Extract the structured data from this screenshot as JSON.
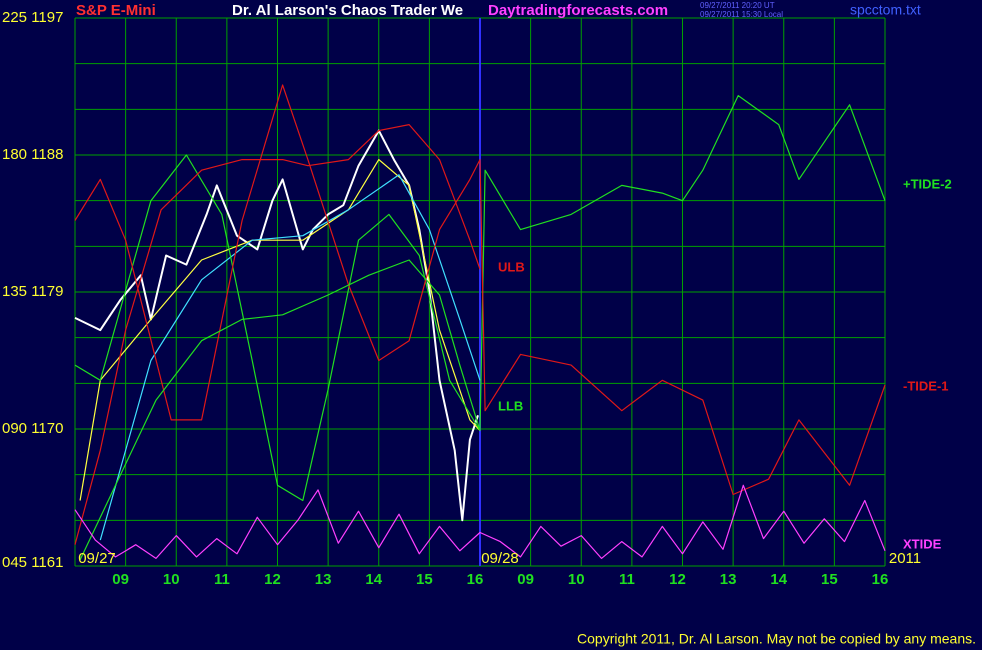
{
  "chart_data": {
    "type": "line",
    "title": "Dr. Al Larson's Chaos Trader We",
    "symbol": "S&P E-Mini",
    "site": "Daytradingforecasts.com",
    "timestamps": [
      "09/27/2011 20:20 UT",
      "09/27/2011 15:30 Local"
    ],
    "file": "spcctom.txt",
    "copyright": "Copyright 2011, Dr. Al Larson. May not be copied by any means.",
    "dates": [
      "09/27",
      "09/28",
      "2011"
    ],
    "xlim": [
      0,
      16
    ],
    "ylim": [
      1161,
      1197
    ],
    "yticks": [
      {
        "value": 1197,
        "label": "225 1197"
      },
      {
        "value": 1188,
        "label": "180 1188"
      },
      {
        "value": 1179,
        "label": "135 1179"
      },
      {
        "value": 1170,
        "label": "090 1170"
      },
      {
        "value": 1161,
        "label": "045 1161"
      }
    ],
    "minor_yticks": [
      1194,
      1191,
      1185,
      1182,
      1176,
      1173,
      1167,
      1164
    ],
    "xticks": [
      {
        "value": 1,
        "label": "09"
      },
      {
        "value": 2,
        "label": "10"
      },
      {
        "value": 3,
        "label": "11"
      },
      {
        "value": 4,
        "label": "12"
      },
      {
        "value": 5,
        "label": "13"
      },
      {
        "value": 6,
        "label": "14"
      },
      {
        "value": 7,
        "label": "15"
      },
      {
        "value": 8,
        "label": "16"
      },
      {
        "value": 9,
        "label": "09"
      },
      {
        "value": 10,
        "label": "10"
      },
      {
        "value": 11,
        "label": "11"
      },
      {
        "value": 12,
        "label": "12"
      },
      {
        "value": 13,
        "label": "13"
      },
      {
        "value": 14,
        "label": "14"
      },
      {
        "value": 15,
        "label": "15"
      },
      {
        "value": 16,
        "label": "16"
      }
    ],
    "day_divider": 8,
    "grid": true,
    "series": [
      {
        "color": "#ffffff",
        "x": [
          0,
          0.5,
          0.9,
          1.3,
          1.5,
          1.8,
          2.2,
          2.6,
          2.8,
          3.2,
          3.6,
          3.9,
          4.1,
          4.5,
          4.7,
          5.0,
          5.3,
          5.6,
          6.0,
          6.3,
          6.6,
          6.8,
          7.0,
          7.2,
          7.5,
          7.65,
          7.8,
          7.96
        ],
        "values": [
          1177.3,
          1176.5,
          1178.5,
          1180.1,
          1177.2,
          1181.4,
          1180.8,
          1184.1,
          1186.0,
          1182.7,
          1181.8,
          1185.0,
          1186.4,
          1181.8,
          1183.1,
          1184.1,
          1184.7,
          1187.3,
          1189.6,
          1187.7,
          1186.0,
          1183.1,
          1179.1,
          1173.2,
          1168.6,
          1164.0,
          1169.3,
          1170.9
        ]
      },
      {
        "color": "#ffff40",
        "x": [
          0.1,
          0.5,
          1.5,
          2.5,
          3.5,
          4.5,
          5.4,
          6.0,
          6.6,
          7.2,
          7.8,
          8.0
        ],
        "values": [
          1165.3,
          1173.2,
          1177.2,
          1181.1,
          1182.4,
          1182.4,
          1184.4,
          1187.7,
          1186.0,
          1176.5,
          1170.6,
          1169.9
        ]
      },
      {
        "color": "#40e0ff",
        "x": [
          0.5,
          1.5,
          2.5,
          3.5,
          4.5,
          5.4,
          6.4,
          7.0,
          7.6,
          8.0
        ],
        "values": [
          1162.7,
          1174.5,
          1179.8,
          1182.4,
          1182.7,
          1184.4,
          1186.7,
          1183.1,
          1177.2,
          1173.2
        ]
      },
      {
        "name": "+TIDE-2",
        "color": "#20e020",
        "x": [
          0,
          0.5,
          1.0,
          1.5,
          2.2,
          2.9,
          3.5,
          4.0,
          4.5,
          5.0,
          5.6,
          6.2,
          6.8,
          7.4,
          8.0,
          8.1,
          8.8,
          9.8,
          10.8,
          11.6,
          12.0,
          12.4,
          13.1,
          13.9,
          14.3,
          15.3,
          16.0
        ],
        "values": [
          1174.2,
          1173.2,
          1179.1,
          1185.0,
          1188.0,
          1184.1,
          1174.5,
          1166.3,
          1165.3,
          1172.6,
          1182.4,
          1184.1,
          1181.4,
          1173.2,
          1169.9,
          1187.0,
          1183.1,
          1184.1,
          1186.0,
          1185.5,
          1185.0,
          1187.0,
          1191.9,
          1190.0,
          1186.4,
          1191.3,
          1185.0
        ]
      },
      {
        "name": "ULB",
        "color": "#e01818",
        "x": [
          0,
          0.5,
          1.0,
          1.7,
          2.5,
          3.3,
          4.1,
          4.6,
          5.4,
          6.0,
          6.6,
          7.2,
          7.8,
          8.0
        ],
        "values": [
          1162.4,
          1168.6,
          1176.5,
          1184.4,
          1187.0,
          1187.7,
          1187.7,
          1187.3,
          1187.7,
          1189.6,
          1190.0,
          1187.7,
          1182.4,
          1180.5
        ]
      },
      {
        "name": "-TIDE-1",
        "color": "#e01818",
        "x": [
          0,
          0.5,
          1.0,
          1.9,
          2.5,
          3.3,
          4.1,
          4.6,
          5.4,
          6.0,
          6.6,
          7.2,
          7.8,
          8.0,
          8.1,
          8.8,
          9.8,
          10.8,
          11.6,
          12.4,
          13.0,
          13.7,
          14.3,
          15.3,
          16.0
        ],
        "values": [
          1183.7,
          1186.4,
          1182.4,
          1170.6,
          1170.6,
          1183.7,
          1192.6,
          1187.7,
          1179.5,
          1174.5,
          1175.8,
          1183.1,
          1186.4,
          1187.7,
          1171.2,
          1174.9,
          1174.2,
          1171.2,
          1173.2,
          1171.9,
          1165.7,
          1166.7,
          1170.6,
          1166.3,
          1172.9
        ]
      },
      {
        "name": "LLB",
        "color": "#20e020",
        "x": [
          0.1,
          0.8,
          1.6,
          2.5,
          3.3,
          4.1,
          5.0,
          5.8,
          6.6,
          7.2,
          7.6,
          8.0
        ],
        "values": [
          1161.4,
          1166.3,
          1171.9,
          1175.8,
          1177.2,
          1177.5,
          1178.8,
          1180.1,
          1181.1,
          1178.8,
          1174.2,
          1169.9
        ]
      },
      {
        "name": "XTIDE",
        "color": "#ff40ff",
        "x": [
          0,
          0.4,
          0.8,
          1.2,
          1.6,
          2.0,
          2.4,
          2.8,
          3.2,
          3.6,
          4.0,
          4.4,
          4.8,
          5.2,
          5.6,
          6.0,
          6.4,
          6.8,
          7.2,
          7.6,
          8.0,
          8.4,
          8.8,
          9.2,
          9.6,
          10.0,
          10.4,
          10.8,
          11.2,
          11.6,
          12.0,
          12.4,
          12.8,
          13.2,
          13.6,
          14.0,
          14.4,
          14.8,
          15.2,
          15.6,
          16.0
        ],
        "values": [
          1164.7,
          1162.7,
          1161.6,
          1162.4,
          1161.5,
          1163.0,
          1161.6,
          1162.8,
          1161.8,
          1164.2,
          1162.4,
          1164.0,
          1166.0,
          1162.5,
          1164.6,
          1162.2,
          1164.4,
          1161.8,
          1163.6,
          1162.0,
          1163.2,
          1162.6,
          1161.6,
          1163.6,
          1162.3,
          1163.0,
          1161.5,
          1162.6,
          1161.6,
          1163.6,
          1161.8,
          1163.9,
          1162.1,
          1166.3,
          1162.8,
          1164.6,
          1162.5,
          1164.1,
          1162.6,
          1165.3,
          1162.0
        ]
      }
    ]
  }
}
